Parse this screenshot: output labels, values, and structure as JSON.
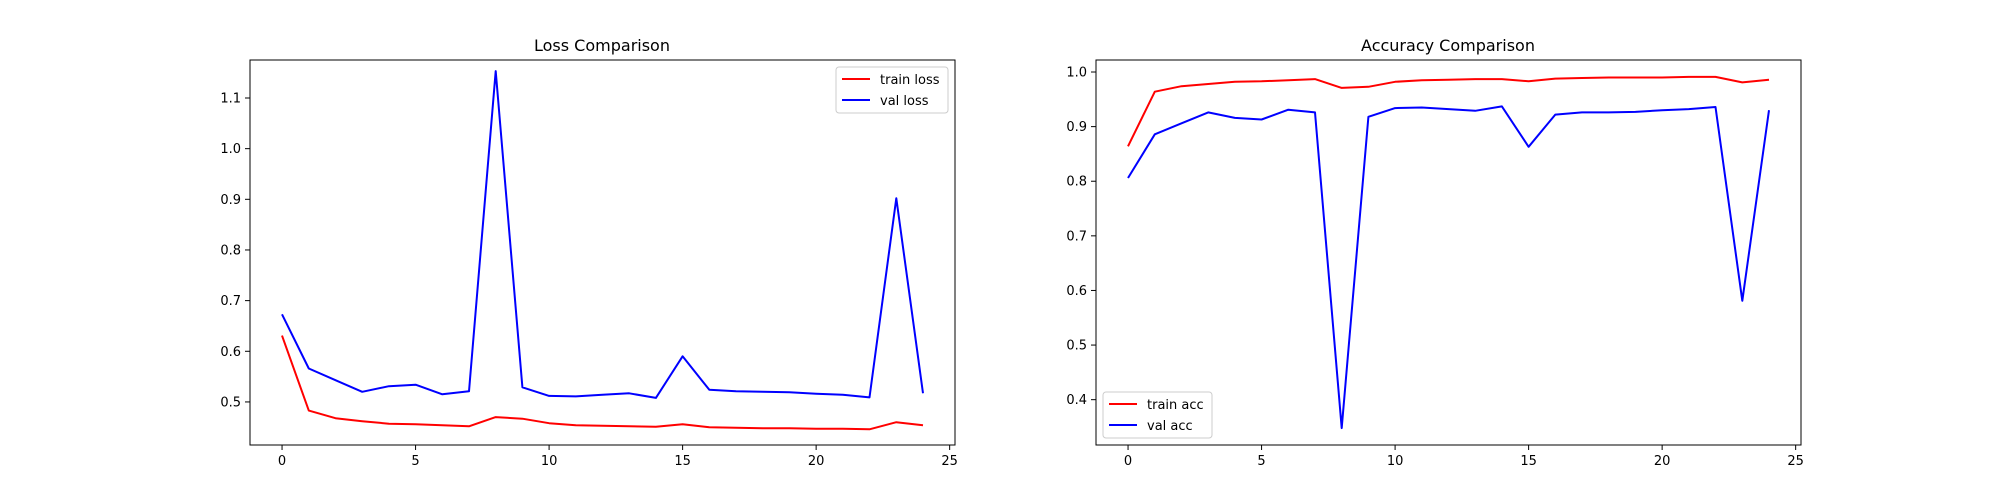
{
  "chart_data": [
    {
      "type": "line",
      "title": "Loss Comparison",
      "xlabel": "",
      "ylabel": "",
      "xlim": [
        -1.2,
        25.2
      ],
      "ylim": [
        0.415,
        1.175
      ],
      "xticks": [
        "0",
        "5",
        "10",
        "15",
        "20",
        "25"
      ],
      "yticks": [
        "0.5",
        "0.6",
        "0.7",
        "0.8",
        "0.9",
        "1.0",
        "1.1"
      ],
      "grid": false,
      "legend_position": "top-right",
      "x": [
        0,
        1,
        2,
        3,
        4,
        5,
        6,
        7,
        8,
        9,
        10,
        11,
        12,
        13,
        14,
        15,
        16,
        17,
        18,
        19,
        20,
        21,
        22,
        23,
        24
      ],
      "series": [
        {
          "name": "train loss",
          "color": "#ff0000",
          "values": [
            0.631,
            0.483,
            0.468,
            0.462,
            0.457,
            0.456,
            0.454,
            0.452,
            0.47,
            0.467,
            0.458,
            0.454,
            0.453,
            0.452,
            0.451,
            0.456,
            0.45,
            0.449,
            0.448,
            0.448,
            0.447,
            0.447,
            0.446,
            0.46,
            0.454
          ]
        },
        {
          "name": "val loss",
          "color": "#0000ff",
          "values": [
            0.673,
            0.566,
            0.543,
            0.52,
            0.531,
            0.534,
            0.515,
            0.521,
            1.153,
            0.529,
            0.512,
            0.511,
            0.514,
            0.517,
            0.508,
            0.59,
            0.524,
            0.521,
            0.52,
            0.519,
            0.516,
            0.514,
            0.509,
            0.902,
            0.517
          ]
        }
      ]
    },
    {
      "type": "line",
      "title": "Accuracy Comparison",
      "xlabel": "",
      "ylabel": "",
      "xlim": [
        -1.2,
        25.2
      ],
      "ylim": [
        0.317,
        1.022
      ],
      "xticks": [
        "0",
        "5",
        "10",
        "15",
        "20",
        "25"
      ],
      "yticks": [
        "0.4",
        "0.5",
        "0.6",
        "0.7",
        "0.8",
        "0.9",
        "1.0"
      ],
      "grid": false,
      "legend_position": "bottom-left",
      "x": [
        0,
        1,
        2,
        3,
        4,
        5,
        6,
        7,
        8,
        9,
        10,
        11,
        12,
        13,
        14,
        15,
        16,
        17,
        18,
        19,
        20,
        21,
        22,
        23,
        24
      ],
      "series": [
        {
          "name": "train acc",
          "color": "#ff0000",
          "values": [
            0.864,
            0.964,
            0.974,
            0.978,
            0.982,
            0.983,
            0.985,
            0.987,
            0.971,
            0.973,
            0.982,
            0.985,
            0.986,
            0.987,
            0.987,
            0.983,
            0.988,
            0.989,
            0.99,
            0.99,
            0.99,
            0.991,
            0.991,
            0.981,
            0.986
          ]
        },
        {
          "name": "val acc",
          "color": "#0000ff",
          "values": [
            0.806,
            0.886,
            0.906,
            0.926,
            0.916,
            0.913,
            0.931,
            0.926,
            0.348,
            0.918,
            0.934,
            0.935,
            0.932,
            0.929,
            0.937,
            0.863,
            0.922,
            0.926,
            0.926,
            0.927,
            0.93,
            0.932,
            0.936,
            0.581,
            0.93
          ]
        }
      ]
    }
  ]
}
